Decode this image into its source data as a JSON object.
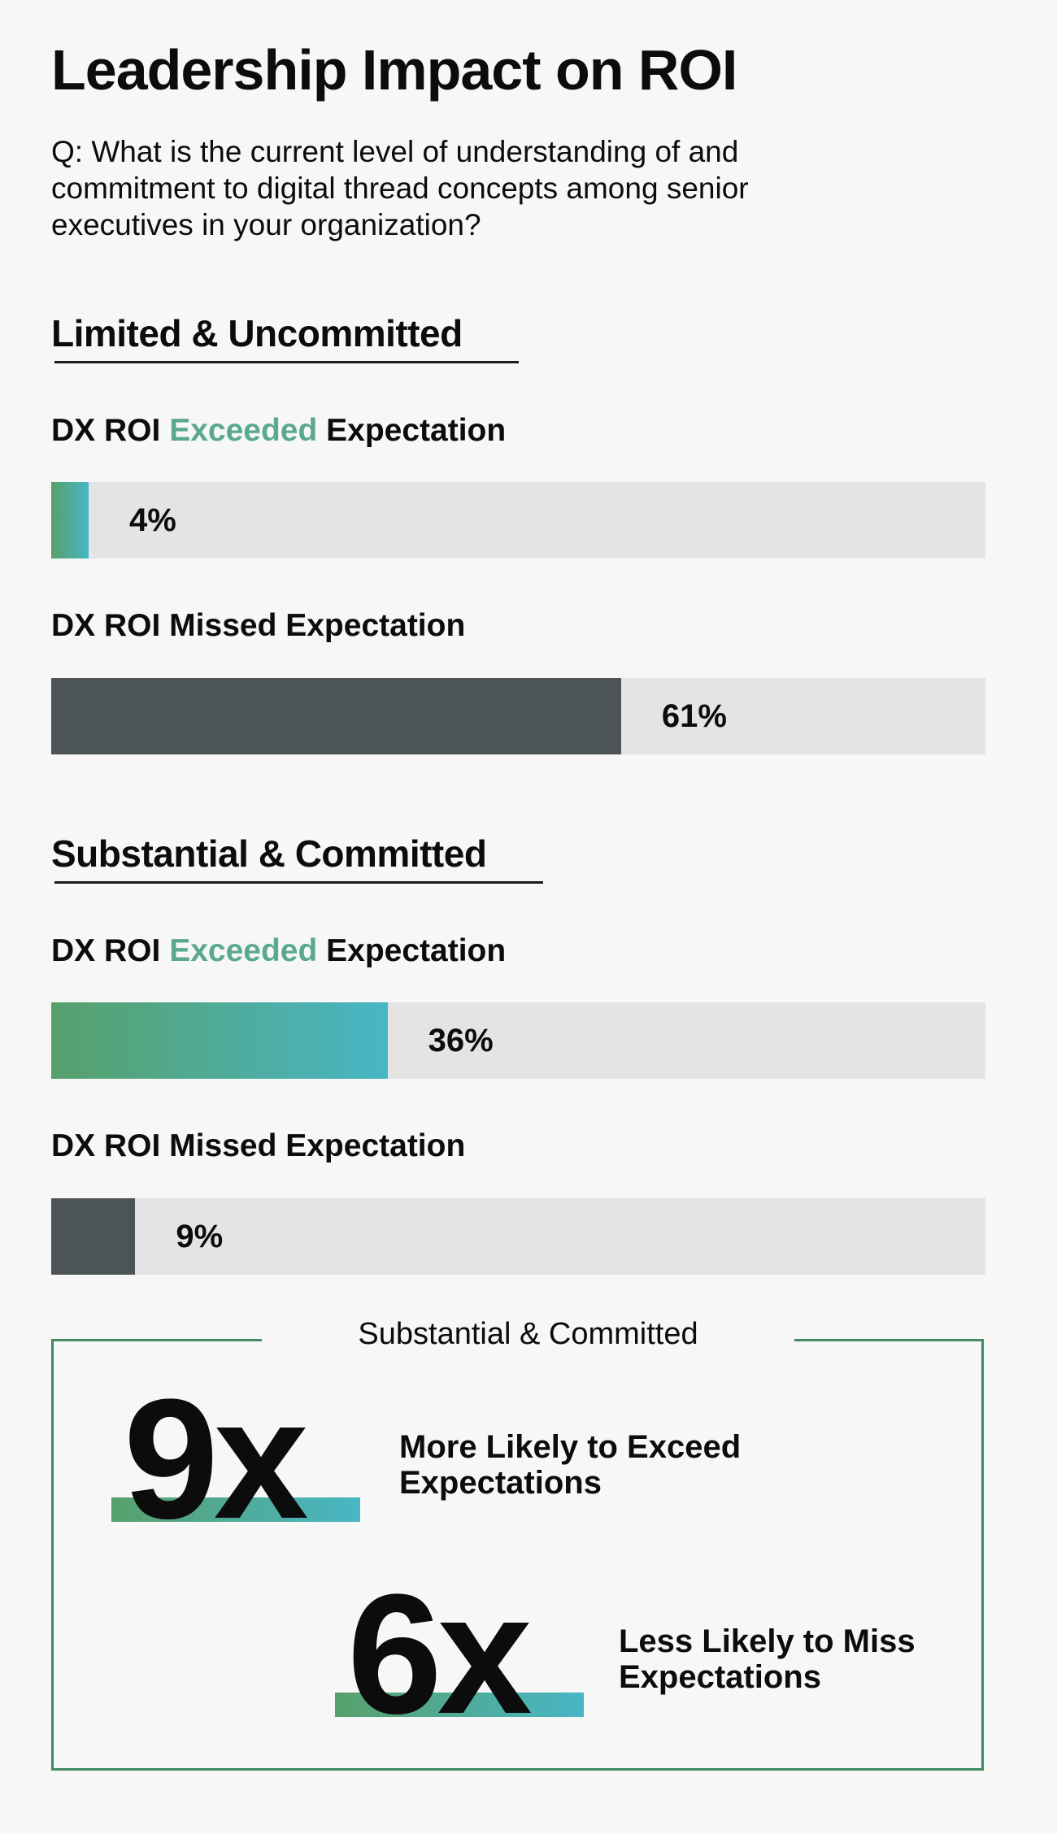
{
  "title": "Leadership Impact on ROI",
  "question": "Q: What is the current level of understanding of and commitment to digital thread concepts among senior executives in your organization?",
  "chart_data": {
    "type": "bar",
    "orientation": "horizontal",
    "ylim": [
      0,
      100
    ],
    "unit": "%",
    "colors": {
      "exceeded": "#57a06b",
      "exceeded_end": "#48b6c5",
      "missed": "#4c5457",
      "track": "#e4e4e4"
    },
    "groups": [
      {
        "heading": "Limited & Uncommitted",
        "metrics": [
          {
            "label_pre": "DX ROI ",
            "label_hl": "Exceeded",
            "label_post": " Expectation",
            "kind": "exceeded",
            "value": 4,
            "display": "4%"
          },
          {
            "label_pre": "DX ROI Missed Expectation",
            "label_hl": "",
            "label_post": "",
            "kind": "missed",
            "value": 61,
            "display": "61%"
          }
        ]
      },
      {
        "heading": "Substantial & Committed",
        "metrics": [
          {
            "label_pre": "DX ROI ",
            "label_hl": "Exceeded",
            "label_post": " Expectation",
            "kind": "exceeded",
            "value": 36,
            "display": "36%"
          },
          {
            "label_pre": "DX ROI Missed Expectation",
            "label_hl": "",
            "label_post": "",
            "kind": "missed",
            "value": 9,
            "display": "9%"
          }
        ]
      }
    ]
  },
  "summary": {
    "caption": "Substantial & Committed",
    "stats": [
      {
        "value": "9x",
        "text_line1": "More Likely to Exceed",
        "text_line2": "Expectations"
      },
      {
        "value": "6x",
        "text_line1": "Less Likely to Miss",
        "text_line2": "Expectations"
      }
    ]
  }
}
